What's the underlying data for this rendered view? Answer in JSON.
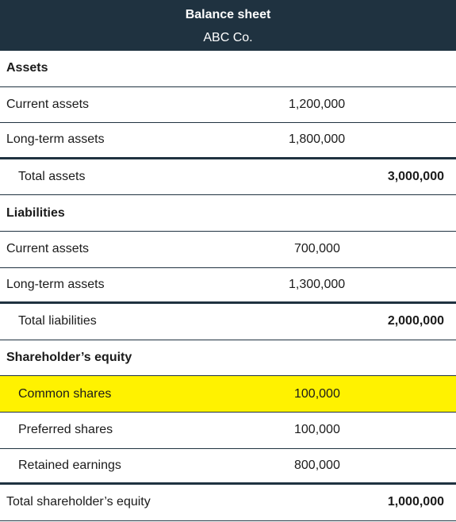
{
  "header": {
    "title": "Balance sheet",
    "company": "ABC Co."
  },
  "assets": {
    "heading": "Assets",
    "items": [
      {
        "label": "Current assets",
        "amount": "1,200,000"
      },
      {
        "label": "Long-term assets",
        "amount": "1,800,000"
      }
    ],
    "total_label": "Total assets",
    "total_value": "3,000,000"
  },
  "liabilities": {
    "heading": "Liabilities",
    "items": [
      {
        "label": "Current assets",
        "amount": "700,000"
      },
      {
        "label": "Long-term assets",
        "amount": "1,300,000"
      }
    ],
    "total_label": "Total liabilities",
    "total_value": "2,000,000"
  },
  "equity": {
    "heading": "Shareholder’s equity",
    "items": [
      {
        "label": "Common shares",
        "amount": "100,000",
        "highlighted": true
      },
      {
        "label": "Preferred shares",
        "amount": "100,000"
      },
      {
        "label": "Retained earnings",
        "amount": "800,000"
      }
    ],
    "total_label": "Total shareholder’s equity",
    "total_value": "1,000,000"
  },
  "colors": {
    "header_bg": "#1f3240",
    "highlight": "#fff200",
    "rule": "#1f3240"
  }
}
